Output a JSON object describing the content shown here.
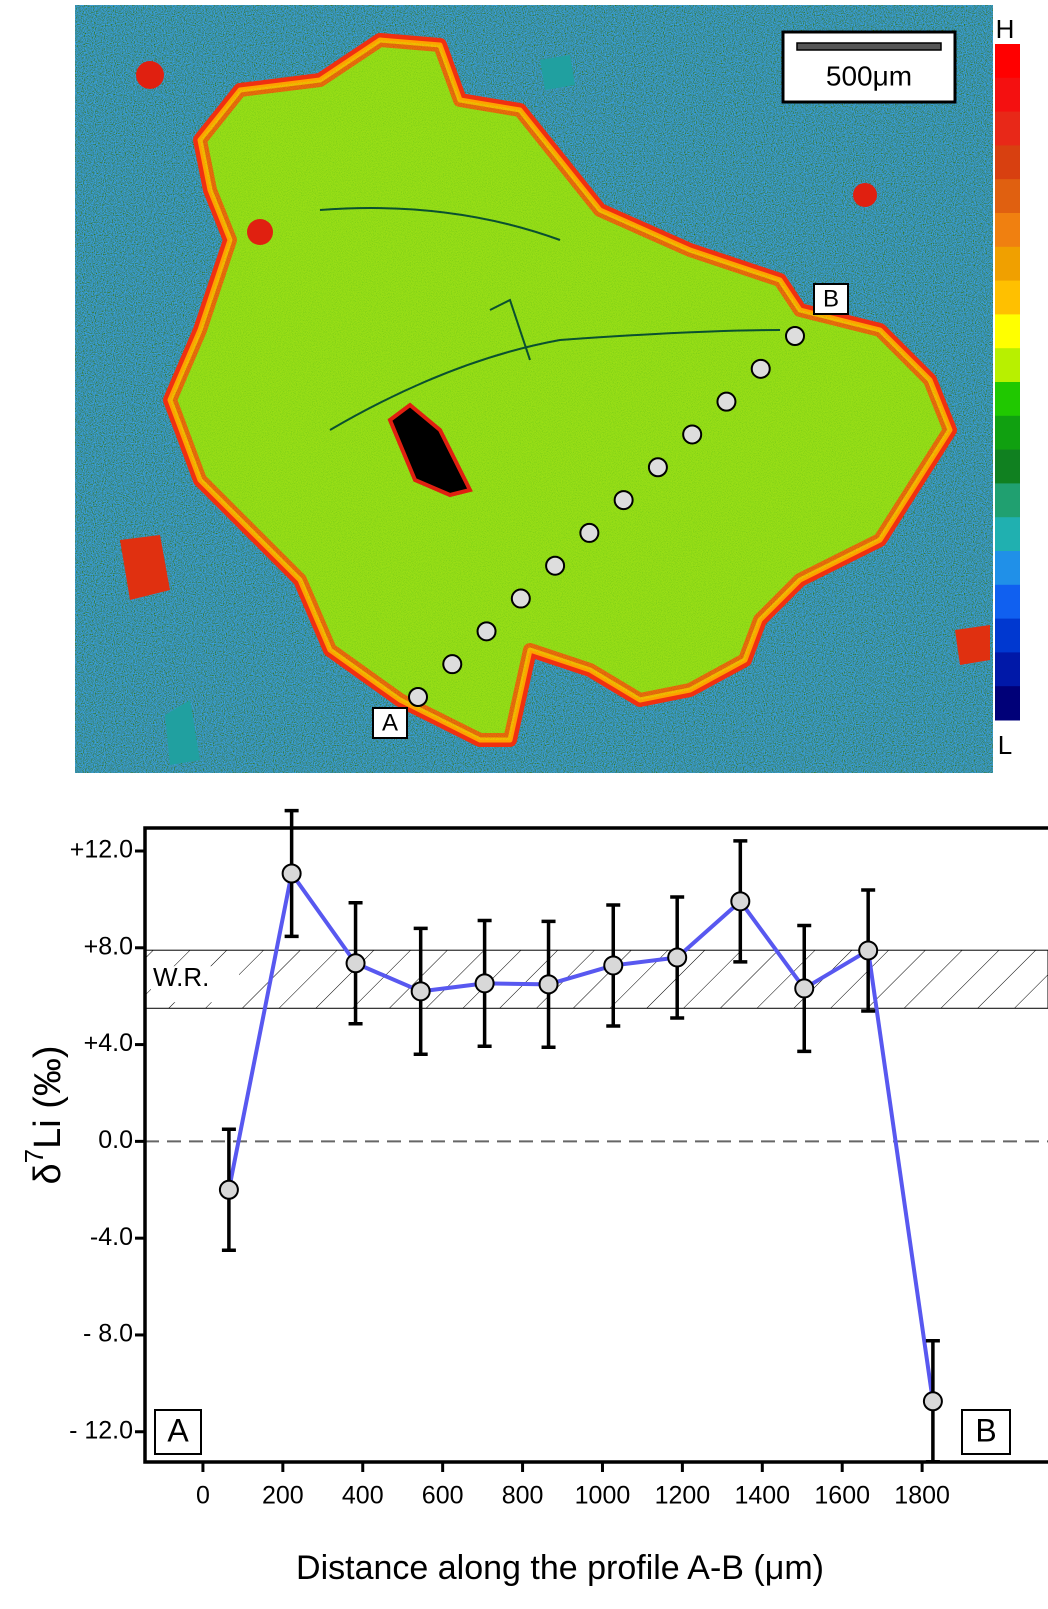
{
  "image": {
    "scale_bar": "500μm",
    "colorbar_high": "H",
    "colorbar_low": "L",
    "point_a": "A",
    "point_b": "B"
  },
  "chart_data": {
    "type": "line",
    "x_label": "Distance along the profile A-B (μm)",
    "y_label": {
      "symbol": "δ",
      "superscript": "7",
      "rest": "Li (‰)"
    },
    "x": [
      65,
      222,
      382,
      545,
      705,
      865,
      1027,
      1187,
      1345,
      1505,
      1665,
      1827
    ],
    "values": [
      -2.0,
      11.07,
      7.36,
      6.2,
      6.53,
      6.49,
      7.27,
      7.6,
      9.92,
      6.32,
      7.89,
      -10.74
    ],
    "errors": [
      2.5,
      2.6,
      2.5,
      2.6,
      2.6,
      2.6,
      2.5,
      2.5,
      2.5,
      2.6,
      2.5,
      2.5
    ],
    "color": "#5858f0",
    "xlim": [
      -145,
      2045
    ],
    "ylim": [
      -13.25,
      12.95
    ],
    "xticks": [
      0,
      200,
      400,
      600,
      800,
      1000,
      1200,
      1400,
      1600,
      1800
    ],
    "yticks": [
      {
        "value": 12,
        "label": "+12.0"
      },
      {
        "value": 8,
        "label": "+8.0"
      },
      {
        "value": 4,
        "label": "+4.0"
      },
      {
        "value": 0,
        "label": "0.0"
      },
      {
        "value": -4,
        "label": "-4.0"
      },
      {
        "value": -8,
        "label": "- 8.0"
      },
      {
        "value": -12,
        "label": "- 12.0"
      }
    ],
    "band": {
      "label": "W.R.",
      "ymin": 5.5,
      "ymax": 7.9
    },
    "zero_line": 0,
    "corner_left": "A",
    "corner_right": "B"
  }
}
